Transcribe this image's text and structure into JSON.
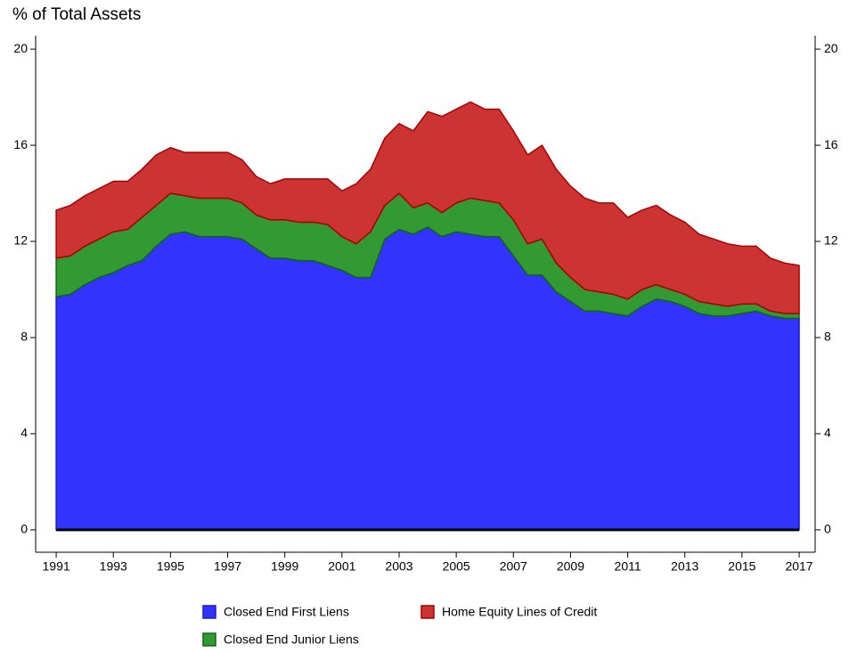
{
  "chart_data": {
    "type": "stacked_area",
    "ylabel": "% of Total Assets",
    "x": [
      1991,
      1991.5,
      1992,
      1992.5,
      1993,
      1993.5,
      1994,
      1994.5,
      1995,
      1995.5,
      1996,
      1996.5,
      1997,
      1997.5,
      1998,
      1998.5,
      1999,
      1999.5,
      2000,
      2000.5,
      2001,
      2001.5,
      2002,
      2002.5,
      2003,
      2003.5,
      2004,
      2004.5,
      2005,
      2005.5,
      2006,
      2006.5,
      2007,
      2007.5,
      2008,
      2008.5,
      2009,
      2009.5,
      2010,
      2010.5,
      2011,
      2011.5,
      2012,
      2012.5,
      2013,
      2013.5,
      2014,
      2014.5,
      2015,
      2015.5,
      2016,
      2016.5,
      2017
    ],
    "series": [
      {
        "name": "Closed End First Liens",
        "color": "#3333ff",
        "edge": "#1a1acc",
        "values": [
          9.7,
          9.8,
          10.2,
          10.5,
          10.7,
          11.0,
          11.2,
          11.8,
          12.3,
          12.4,
          12.2,
          12.2,
          12.2,
          12.1,
          11.7,
          11.3,
          11.3,
          11.2,
          11.2,
          11.0,
          10.8,
          10.5,
          10.5,
          12.1,
          12.5,
          12.3,
          12.6,
          12.2,
          12.4,
          12.3,
          12.2,
          12.2,
          11.4,
          10.6,
          10.6,
          9.9,
          9.5,
          9.1,
          9.1,
          9.0,
          8.9,
          9.3,
          9.6,
          9.5,
          9.3,
          9.0,
          8.9,
          8.9,
          9.0,
          9.1,
          8.9,
          8.8,
          8.8
        ]
      },
      {
        "name": "Closed End Junior Liens",
        "color": "#339933",
        "edge": "#116611",
        "values": [
          1.6,
          1.6,
          1.6,
          1.6,
          1.7,
          1.5,
          1.8,
          1.7,
          1.7,
          1.5,
          1.6,
          1.6,
          1.6,
          1.5,
          1.4,
          1.6,
          1.6,
          1.6,
          1.6,
          1.7,
          1.4,
          1.4,
          1.9,
          1.4,
          1.5,
          1.1,
          1.0,
          1.0,
          1.2,
          1.5,
          1.5,
          1.4,
          1.5,
          1.3,
          1.5,
          1.2,
          1.0,
          0.9,
          0.8,
          0.8,
          0.7,
          0.7,
          0.6,
          0.5,
          0.5,
          0.5,
          0.5,
          0.4,
          0.4,
          0.3,
          0.2,
          0.2,
          0.2
        ]
      },
      {
        "name": "Home Equity Lines of Credit",
        "color": "#cc3333",
        "edge": "#aa0000",
        "values": [
          2.0,
          2.1,
          2.1,
          2.1,
          2.1,
          2.0,
          2.0,
          2.1,
          1.9,
          1.8,
          1.9,
          1.9,
          1.9,
          1.8,
          1.6,
          1.5,
          1.7,
          1.8,
          1.8,
          1.9,
          1.9,
          2.5,
          2.6,
          2.8,
          2.9,
          3.2,
          3.8,
          4.0,
          3.9,
          4.0,
          3.8,
          3.9,
          3.7,
          3.7,
          3.9,
          3.9,
          3.8,
          3.8,
          3.7,
          3.8,
          3.4,
          3.3,
          3.3,
          3.1,
          3.0,
          2.8,
          2.7,
          2.6,
          2.4,
          2.4,
          2.2,
          2.1,
          2.0
        ]
      }
    ],
    "xlim": [
      1990.28,
      2017.56
    ],
    "xticks": [
      1991,
      1993,
      1995,
      1997,
      1999,
      2001,
      2003,
      2005,
      2007,
      2009,
      2011,
      2013,
      2015,
      2017
    ],
    "ylim": [
      -0.93,
      20.56
    ],
    "yticks": [
      0,
      4,
      8,
      12,
      16,
      20
    ],
    "right_axis_mirror": true
  }
}
